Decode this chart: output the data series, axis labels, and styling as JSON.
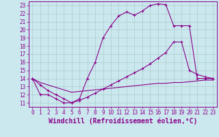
{
  "xlabel": "Windchill (Refroidissement éolien,°C)",
  "ylabel": "",
  "xlim": [
    -0.5,
    23.5
  ],
  "ylim": [
    10.5,
    23.5
  ],
  "xticks": [
    0,
    1,
    2,
    3,
    4,
    5,
    6,
    7,
    8,
    9,
    10,
    11,
    12,
    13,
    14,
    15,
    16,
    17,
    18,
    19,
    20,
    21,
    22,
    23
  ],
  "yticks": [
    11,
    12,
    13,
    14,
    15,
    16,
    17,
    18,
    19,
    20,
    21,
    22,
    23
  ],
  "background_color": "#cce8ef",
  "grid_color": "#aacccc",
  "line_color": "#880088",
  "line1_x": [
    0,
    1,
    2,
    3,
    4,
    5,
    6,
    7,
    8,
    9,
    10,
    11,
    12,
    13,
    14,
    15,
    16,
    17,
    18,
    19,
    20,
    21,
    22,
    23
  ],
  "line1_y": [
    14,
    12,
    12,
    11.5,
    11,
    11,
    11.5,
    14,
    16,
    19,
    20.5,
    21.7,
    22.2,
    21.8,
    22.3,
    23.0,
    23.2,
    23.1,
    20.5,
    20.5,
    20.5,
    14,
    14,
    14
  ],
  "line2_x": [
    0,
    1,
    2,
    3,
    4,
    5,
    6,
    7,
    8,
    9,
    10,
    11,
    12,
    13,
    14,
    15,
    16,
    17,
    18,
    19,
    20,
    21,
    22,
    23
  ],
  "line2_y": [
    14,
    13.2,
    12.5,
    12.0,
    11.5,
    11.0,
    11.3,
    11.7,
    12.2,
    12.7,
    13.2,
    13.7,
    14.2,
    14.7,
    15.2,
    15.8,
    16.5,
    17.2,
    18.5,
    18.5,
    15.0,
    14.5,
    14.2,
    14.0
  ],
  "line3_x": [
    0,
    1,
    2,
    3,
    4,
    5,
    6,
    7,
    8,
    9,
    10,
    11,
    12,
    13,
    14,
    15,
    16,
    17,
    18,
    19,
    20,
    21,
    22,
    23
  ],
  "line3_y": [
    14,
    13.5,
    13.2,
    12.9,
    12.6,
    12.3,
    12.4,
    12.5,
    12.6,
    12.7,
    12.8,
    12.9,
    13.0,
    13.1,
    13.2,
    13.3,
    13.4,
    13.4,
    13.5,
    13.5,
    13.6,
    13.7,
    13.8,
    13.8
  ],
  "tick_fontsize": 5.5,
  "label_fontsize": 7.0
}
